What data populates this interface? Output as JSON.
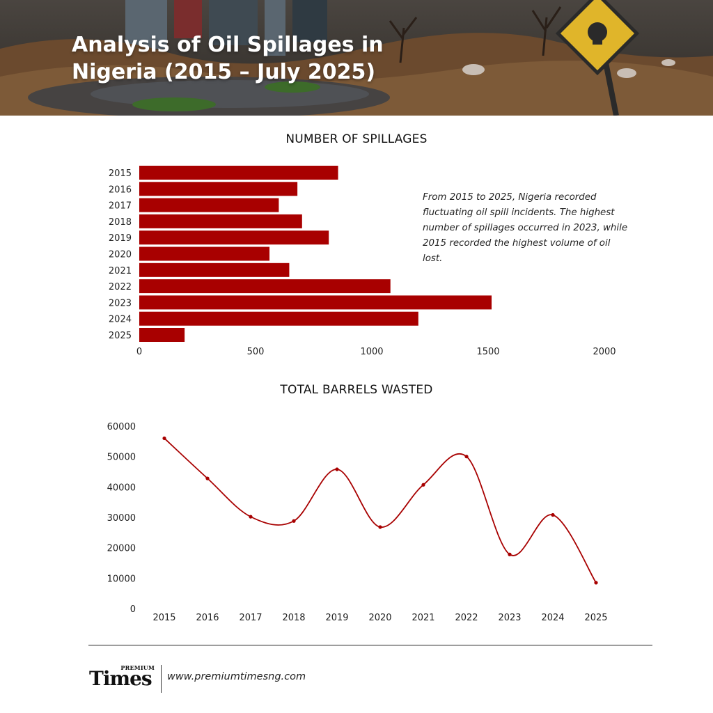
{
  "header": {
    "title": "Analysis of Oil Spillages in Nigeria (2015 – July 2025)"
  },
  "description": "From 2015 to 2025, Nigeria recorded fluctuating oil spill incidents. The highest number of spillages occurred in 2023, while 2015 recorded the highest volume of oil lost.",
  "colors": {
    "accent": "#a80000",
    "banner_sky": "#3a3530",
    "banner_ground": "#6b4a2e"
  },
  "chart_data": [
    {
      "type": "bar",
      "orientation": "horizontal",
      "title": "NUMBER OF SPILLAGES",
      "categories": [
        "2015",
        "2016",
        "2017",
        "2018",
        "2019",
        "2020",
        "2021",
        "2022",
        "2023",
        "2024",
        "2025"
      ],
      "values": [
        855,
        680,
        600,
        700,
        815,
        560,
        645,
        1080,
        1515,
        1200,
        195
      ],
      "xlim": [
        0,
        2000
      ],
      "xticks": [
        "0",
        "500",
        "1000",
        "1500",
        "2000"
      ],
      "grid": false,
      "color": "#a80000"
    },
    {
      "type": "line",
      "title": "TOTAL BARRELS WASTED",
      "x": [
        "2015",
        "2016",
        "2017",
        "2018",
        "2019",
        "2020",
        "2021",
        "2022",
        "2023",
        "2024",
        "2025"
      ],
      "values": [
        56000,
        42800,
        30200,
        28800,
        45800,
        26800,
        40700,
        50000,
        17800,
        30800,
        8500
      ],
      "ylim": [
        0,
        60000
      ],
      "yticks": [
        "0",
        "10000",
        "20000",
        "30000",
        "40000",
        "50000",
        "60000"
      ],
      "grid": false,
      "smooth": true,
      "color": "#a80000"
    }
  ],
  "footer": {
    "logo_premium": "PREMIUM",
    "logo_name": "Times",
    "website": "www.premiumtimesng.com"
  }
}
